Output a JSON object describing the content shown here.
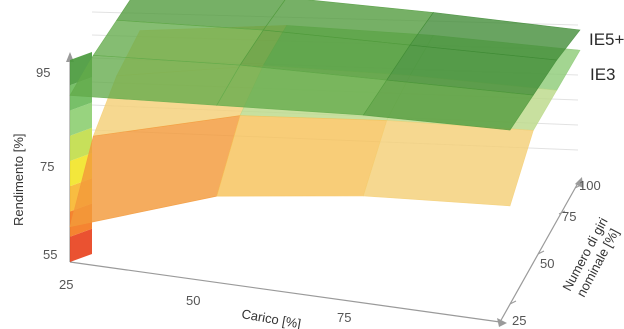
{
  "chart_data": {
    "type": "surface3d",
    "xlabel": "Carico [%]",
    "ylabel": "Rendimento [%]",
    "zlabel": "Numero di giri nominale [%]",
    "xticks": [
      "25",
      "50",
      "75"
    ],
    "yticks": [
      "55",
      "75",
      "95"
    ],
    "zticks": [
      "25",
      "50",
      "75",
      "100"
    ],
    "ylim": [
      55,
      95
    ],
    "colorbar_colors": [
      "#e8431f",
      "#f47a1f",
      "#f7b731",
      "#f2e52a",
      "#c2dd4c",
      "#8fcf74",
      "#6dbb5c",
      "#4a9a3d"
    ],
    "series": [
      {
        "name": "IE5+",
        "color": "#4f9a3b",
        "x": [
          25,
          50,
          75,
          100
        ],
        "z": [
          25,
          50,
          75,
          100
        ],
        "values": [
          [
            88,
            90,
            92,
            93
          ],
          [
            90,
            92,
            93,
            94
          ],
          [
            91,
            93,
            94,
            95
          ],
          [
            92,
            93.5,
            94.5,
            95
          ]
        ]
      },
      {
        "name": "IE3",
        "color": "#7cc06a",
        "x": [
          25,
          50,
          75,
          100
        ],
        "z": [
          25,
          50,
          75,
          100
        ],
        "values": [
          [
            62,
            72,
            76,
            78
          ],
          [
            74,
            82,
            85,
            87
          ],
          [
            80,
            86,
            88,
            89
          ],
          [
            83,
            88,
            90,
            91
          ]
        ]
      }
    ]
  }
}
